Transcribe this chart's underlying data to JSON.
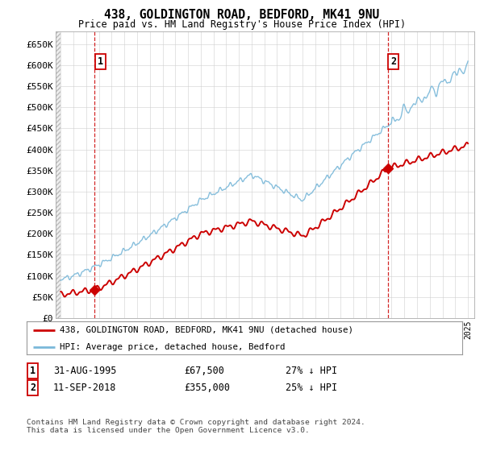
{
  "title": "438, GOLDINGTON ROAD, BEDFORD, MK41 9NU",
  "subtitle": "Price paid vs. HM Land Registry's House Price Index (HPI)",
  "ylim": [
    0,
    680000
  ],
  "yticks": [
    0,
    50000,
    100000,
    150000,
    200000,
    250000,
    300000,
    350000,
    400000,
    450000,
    500000,
    550000,
    600000,
    650000
  ],
  "ytick_labels": [
    "£0",
    "£50K",
    "£100K",
    "£150K",
    "£200K",
    "£250K",
    "£300K",
    "£350K",
    "£400K",
    "£450K",
    "£500K",
    "£550K",
    "£600K",
    "£650K"
  ],
  "xlim_start": 1992.6,
  "xlim_end": 2025.5,
  "sale1_date": 1995.67,
  "sale1_price": 67500,
  "sale2_date": 2018.7,
  "sale2_price": 355000,
  "hpi_color": "#7ab8d9",
  "price_color": "#cc0000",
  "marker_color": "#cc0000",
  "dashed_color": "#cc0000",
  "grid_color": "#d0d0d0",
  "legend_line1": "438, GOLDINGTON ROAD, BEDFORD, MK41 9NU (detached house)",
  "legend_line2": "HPI: Average price, detached house, Bedford",
  "note1_label": "1",
  "note1_date": "31-AUG-1995",
  "note1_price": "£67,500",
  "note1_hpi": "27% ↓ HPI",
  "note2_label": "2",
  "note2_date": "11-SEP-2018",
  "note2_price": "£355,000",
  "note2_hpi": "25% ↓ HPI",
  "footer": "Contains HM Land Registry data © Crown copyright and database right 2024.\nThis data is licensed under the Open Government Licence v3.0."
}
